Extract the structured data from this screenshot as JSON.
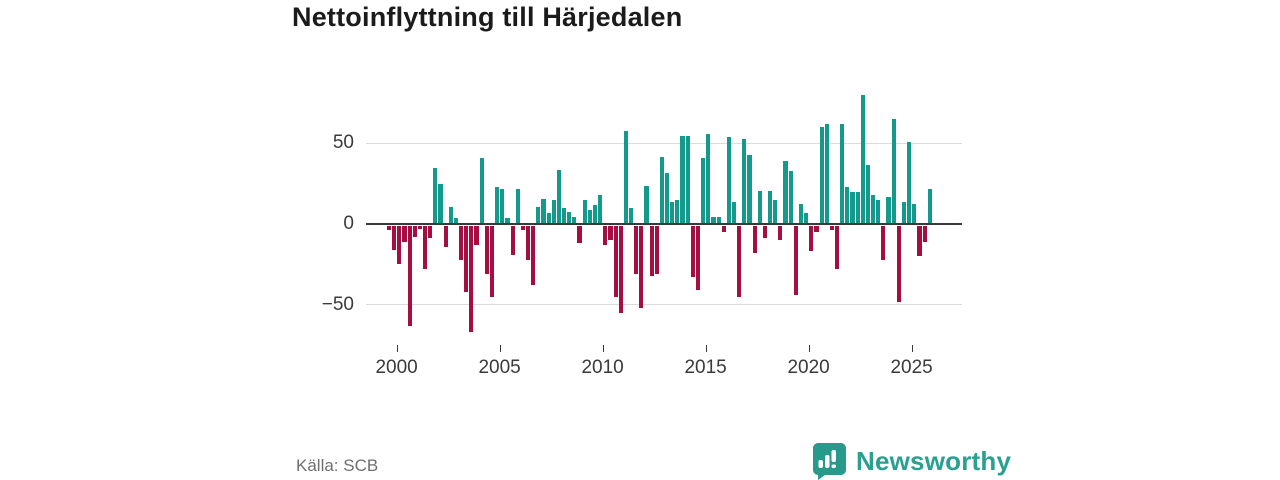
{
  "title": "Nettoinflyttning till Härjedalen",
  "source": "Källa: SCB",
  "brand": {
    "name": "Newsworthy"
  },
  "colors": {
    "positive_bar": "#149a8d",
    "negative_bar": "#a60d42",
    "brand_teal": "#2aa091",
    "axis_text": "#3a3a3a",
    "source_text": "#6f6f6f"
  },
  "chart_data": {
    "type": "bar",
    "title": "Nettoinflyttning till Härjedalen",
    "frequency": "quarterly",
    "x_start_year": 1999,
    "x_start_quarter": 3,
    "values": [
      -3,
      -15,
      -24,
      -10,
      -62,
      -7,
      -2,
      -27,
      -8,
      34,
      24,
      -13,
      10,
      3,
      -21,
      -41,
      -66,
      -12,
      40,
      -30,
      -44,
      22,
      21,
      3,
      -18,
      21,
      -3,
      -21,
      -37,
      10,
      15,
      6,
      14,
      33,
      9,
      7,
      4,
      -11,
      14,
      8,
      11,
      17,
      -12,
      -9,
      -44,
      -54,
      57,
      9,
      -30,
      -51,
      23,
      -31,
      -30,
      41,
      31,
      13,
      14,
      54,
      54,
      -32,
      -40,
      40,
      55,
      4,
      4,
      -4,
      53,
      13,
      -44,
      52,
      42,
      -17,
      20,
      -8,
      20,
      14,
      -9,
      38,
      32,
      -43,
      12,
      6,
      -16,
      -4,
      59,
      61,
      -3,
      -27,
      61,
      22,
      19,
      19,
      79,
      36,
      17,
      14,
      -21,
      16,
      64,
      -47,
      13,
      50,
      12,
      -19,
      -10,
      21
    ],
    "xticks": [
      2000,
      2005,
      2010,
      2015,
      2020,
      2025
    ],
    "xtick_labels": [
      "2000",
      "2005",
      "2010",
      "2015",
      "2020",
      "2025"
    ],
    "yticks": [
      50,
      0,
      -50
    ],
    "ytick_labels": [
      "50",
      "0",
      "−50"
    ],
    "ylim": [
      -70,
      85
    ],
    "grid": true,
    "legend": false
  }
}
